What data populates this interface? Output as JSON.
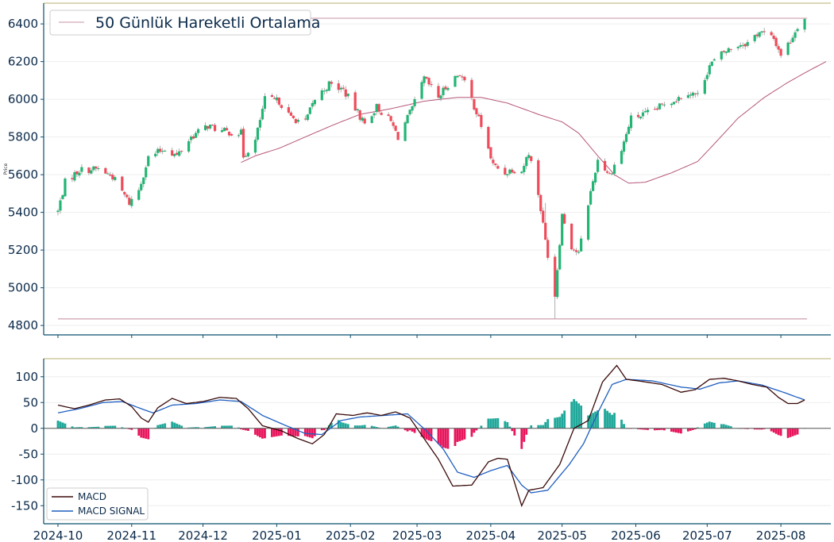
{
  "chart_data": [
    {
      "type": "candlestick",
      "ylabel": "Price",
      "ylim": [
        4750,
        6510
      ],
      "yticks": [
        4800,
        5000,
        5200,
        5400,
        5600,
        5800,
        6000,
        6200,
        6400
      ],
      "legend": {
        "label": "50 Günlük Hareketli Ortalama",
        "position": "top-left"
      },
      "colors": {
        "up": "#22b573",
        "down": "#ef4b5a",
        "ma": "#b5567a",
        "hline": "#d3a7b7",
        "spine": "#0b4f6c",
        "top_border": "#c8bf8a"
      },
      "horizontal_lines": [
        6430,
        4835
      ],
      "close_anchors": [
        [
          "2024-10-01",
          5405
        ],
        [
          "2024-10-04",
          5560
        ],
        [
          "2024-10-10",
          5625
        ],
        [
          "2024-10-18",
          5630
        ],
        [
          "2024-10-24",
          5590
        ],
        [
          "2024-10-31",
          5450
        ],
        [
          "2024-11-04",
          5520
        ],
        [
          "2024-11-08",
          5690
        ],
        [
          "2024-11-15",
          5740
        ],
        [
          "2024-11-20",
          5700
        ],
        [
          "2024-11-26",
          5800
        ],
        [
          "2024-12-03",
          5860
        ],
        [
          "2024-12-09",
          5830
        ],
        [
          "2024-12-17",
          5820
        ],
        [
          "2024-12-18",
          5700
        ],
        [
          "2024-12-23",
          5780
        ],
        [
          "2024-12-27",
          6000
        ],
        [
          "2025-01-02",
          5990
        ],
        [
          "2025-01-07",
          5900
        ],
        [
          "2025-01-13",
          5880
        ],
        [
          "2025-01-17",
          6000
        ],
        [
          "2025-01-23",
          6080
        ],
        [
          "2025-01-29",
          6050
        ],
        [
          "2025-02-03",
          5950
        ],
        [
          "2025-02-07",
          5870
        ],
        [
          "2025-02-12",
          5960
        ],
        [
          "2025-02-18",
          5880
        ],
        [
          "2025-02-21",
          5800
        ],
        [
          "2025-02-27",
          5950
        ],
        [
          "2025-03-04",
          6110
        ],
        [
          "2025-03-10",
          6010
        ],
        [
          "2025-03-14",
          6080
        ],
        [
          "2025-03-19",
          6140
        ],
        [
          "2025-03-24",
          6000
        ],
        [
          "2025-03-28",
          5860
        ],
        [
          "2025-04-02",
          5650
        ],
        [
          "2025-04-07",
          5610
        ],
        [
          "2025-04-10",
          5630
        ],
        [
          "2025-04-14",
          5620
        ],
        [
          "2025-04-17",
          5720
        ],
        [
          "2025-04-21",
          5500
        ],
        [
          "2025-04-24",
          5250
        ],
        [
          "2025-04-28",
          4960
        ],
        [
          "2025-05-01",
          5390
        ],
        [
          "2025-05-05",
          5220
        ],
        [
          "2025-05-08",
          5180
        ],
        [
          "2025-05-12",
          5450
        ],
        [
          "2025-05-16",
          5680
        ],
        [
          "2025-05-21",
          5600
        ],
        [
          "2025-05-26",
          5730
        ],
        [
          "2025-05-30",
          5900
        ],
        [
          "2025-06-05",
          5920
        ],
        [
          "2025-06-10",
          5950
        ],
        [
          "2025-06-13",
          5980
        ],
        [
          "2025-06-18",
          6000
        ],
        [
          "2025-06-23",
          6040
        ],
        [
          "2025-06-27",
          6020
        ],
        [
          "2025-07-02",
          6180
        ],
        [
          "2025-07-08",
          6250
        ],
        [
          "2025-07-14",
          6290
        ],
        [
          "2025-07-18",
          6300
        ],
        [
          "2025-07-23",
          6360
        ],
        [
          "2025-07-29",
          6320
        ],
        [
          "2025-08-01",
          6240
        ],
        [
          "2025-08-05",
          6310
        ],
        [
          "2025-08-08",
          6390
        ],
        [
          "2025-08-11",
          6430
        ]
      ],
      "ma50_anchors": [
        [
          "2024-12-17",
          5665
        ],
        [
          "2024-12-23",
          5700
        ],
        [
          "2025-01-02",
          5740
        ],
        [
          "2025-01-13",
          5800
        ],
        [
          "2025-01-24",
          5860
        ],
        [
          "2025-02-05",
          5920
        ],
        [
          "2025-02-18",
          5950
        ],
        [
          "2025-03-04",
          5990
        ],
        [
          "2025-03-18",
          6010
        ],
        [
          "2025-03-28",
          6010
        ],
        [
          "2025-04-08",
          5980
        ],
        [
          "2025-04-21",
          5920
        ],
        [
          "2025-05-01",
          5880
        ],
        [
          "2025-05-08",
          5820
        ],
        [
          "2025-05-16",
          5700
        ],
        [
          "2025-05-23",
          5600
        ],
        [
          "2025-05-29",
          5555
        ],
        [
          "2025-06-05",
          5560
        ],
        [
          "2025-06-16",
          5610
        ],
        [
          "2025-06-27",
          5670
        ],
        [
          "2025-07-03",
          5750
        ],
        [
          "2025-07-14",
          5900
        ],
        [
          "2025-07-25",
          6010
        ],
        [
          "2025-08-04",
          6090
        ],
        [
          "2025-08-11",
          6140
        ],
        [
          "2025-08-20",
          6200
        ]
      ],
      "x_range": [
        "2024-09-25",
        "2025-08-22"
      ]
    },
    {
      "type": "line+bar",
      "ylim": [
        -185,
        135
      ],
      "yticks": [
        -150,
        -100,
        -50,
        0,
        50,
        100
      ],
      "x_range": [
        "2024-09-25",
        "2025-08-22"
      ],
      "xticks": [
        "2024-10",
        "2024-11",
        "2024-12",
        "2025-01",
        "2025-02",
        "2025-03",
        "2025-04",
        "2025-05",
        "2025-06",
        "2025-07",
        "2025-08"
      ],
      "legend": {
        "position": "bottom-left",
        "entries": [
          {
            "label": "MACD",
            "color": "#3a0a0a"
          },
          {
            "label": "MACD SIGNAL",
            "color": "#1f5fbf"
          }
        ]
      },
      "colors": {
        "hist_pos": "#1fa89a",
        "hist_neg": "#e8165d",
        "zero": "#555555"
      },
      "series": [
        {
          "name": "MACD",
          "points": [
            [
              "2024-10-01",
              45
            ],
            [
              "2024-10-08",
              38
            ],
            [
              "2024-10-14",
              45
            ],
            [
              "2024-10-21",
              55
            ],
            [
              "2024-10-27",
              57
            ],
            [
              "2024-11-01",
              42
            ],
            [
              "2024-11-05",
              20
            ],
            [
              "2024-11-08",
              12
            ],
            [
              "2024-11-12",
              40
            ],
            [
              "2024-11-18",
              58
            ],
            [
              "2024-11-24",
              48
            ],
            [
              "2024-12-01",
              52
            ],
            [
              "2024-12-08",
              60
            ],
            [
              "2024-12-15",
              58
            ],
            [
              "2024-12-20",
              38
            ],
            [
              "2024-12-26",
              5
            ],
            [
              "2025-01-03",
              -5
            ],
            [
              "2025-01-10",
              -20
            ],
            [
              "2025-01-16",
              -30
            ],
            [
              "2025-01-21",
              -12
            ],
            [
              "2025-01-26",
              28
            ],
            [
              "2025-02-02",
              25
            ],
            [
              "2025-02-08",
              30
            ],
            [
              "2025-02-14",
              25
            ],
            [
              "2025-02-20",
              32
            ],
            [
              "2025-02-26",
              20
            ],
            [
              "2025-03-04",
              -20
            ],
            [
              "2025-03-10",
              -60
            ],
            [
              "2025-03-16",
              -112
            ],
            [
              "2025-03-24",
              -110
            ],
            [
              "2025-03-31",
              -65
            ],
            [
              "2025-04-04",
              -58
            ],
            [
              "2025-04-08",
              -60
            ],
            [
              "2025-04-14",
              -150
            ],
            [
              "2025-04-17",
              -120
            ],
            [
              "2025-04-23",
              -115
            ],
            [
              "2025-04-30",
              -70
            ],
            [
              "2025-05-06",
              0
            ],
            [
              "2025-05-12",
              15
            ],
            [
              "2025-05-18",
              90
            ],
            [
              "2025-05-24",
              122
            ],
            [
              "2025-05-28",
              95
            ],
            [
              "2025-06-05",
              90
            ],
            [
              "2025-06-12",
              85
            ],
            [
              "2025-06-20",
              70
            ],
            [
              "2025-06-26",
              75
            ],
            [
              "2025-07-02",
              95
            ],
            [
              "2025-07-08",
              97
            ],
            [
              "2025-07-14",
              92
            ],
            [
              "2025-07-20",
              85
            ],
            [
              "2025-07-26",
              80
            ],
            [
              "2025-07-31",
              60
            ],
            [
              "2025-08-04",
              48
            ],
            [
              "2025-08-08",
              48
            ],
            [
              "2025-08-11",
              55
            ]
          ]
        },
        {
          "name": "MACD SIGNAL",
          "points": [
            [
              "2024-10-01",
              30
            ],
            [
              "2024-10-10",
              38
            ],
            [
              "2024-10-20",
              50
            ],
            [
              "2024-10-28",
              52
            ],
            [
              "2024-11-05",
              38
            ],
            [
              "2024-11-10",
              30
            ],
            [
              "2024-11-18",
              45
            ],
            [
              "2024-11-28",
              48
            ],
            [
              "2024-12-08",
              55
            ],
            [
              "2024-12-17",
              52
            ],
            [
              "2024-12-26",
              25
            ],
            [
              "2025-01-05",
              5
            ],
            [
              "2025-01-13",
              -10
            ],
            [
              "2025-01-20",
              -12
            ],
            [
              "2025-01-28",
              15
            ],
            [
              "2025-02-05",
              22
            ],
            [
              "2025-02-15",
              25
            ],
            [
              "2025-02-25",
              28
            ],
            [
              "2025-03-05",
              -5
            ],
            [
              "2025-03-12",
              -40
            ],
            [
              "2025-03-18",
              -85
            ],
            [
              "2025-03-25",
              -95
            ],
            [
              "2025-04-01",
              -82
            ],
            [
              "2025-04-08",
              -72
            ],
            [
              "2025-04-14",
              -110
            ],
            [
              "2025-04-18",
              -125
            ],
            [
              "2025-04-25",
              -120
            ],
            [
              "2025-05-04",
              -70
            ],
            [
              "2025-05-10",
              -30
            ],
            [
              "2025-05-16",
              30
            ],
            [
              "2025-05-22",
              85
            ],
            [
              "2025-05-28",
              95
            ],
            [
              "2025-06-08",
              92
            ],
            [
              "2025-06-20",
              80
            ],
            [
              "2025-06-28",
              76
            ],
            [
              "2025-07-06",
              88
            ],
            [
              "2025-07-14",
              92
            ],
            [
              "2025-07-24",
              84
            ],
            [
              "2025-08-02",
              70
            ],
            [
              "2025-08-11",
              55
            ]
          ]
        }
      ]
    }
  ]
}
